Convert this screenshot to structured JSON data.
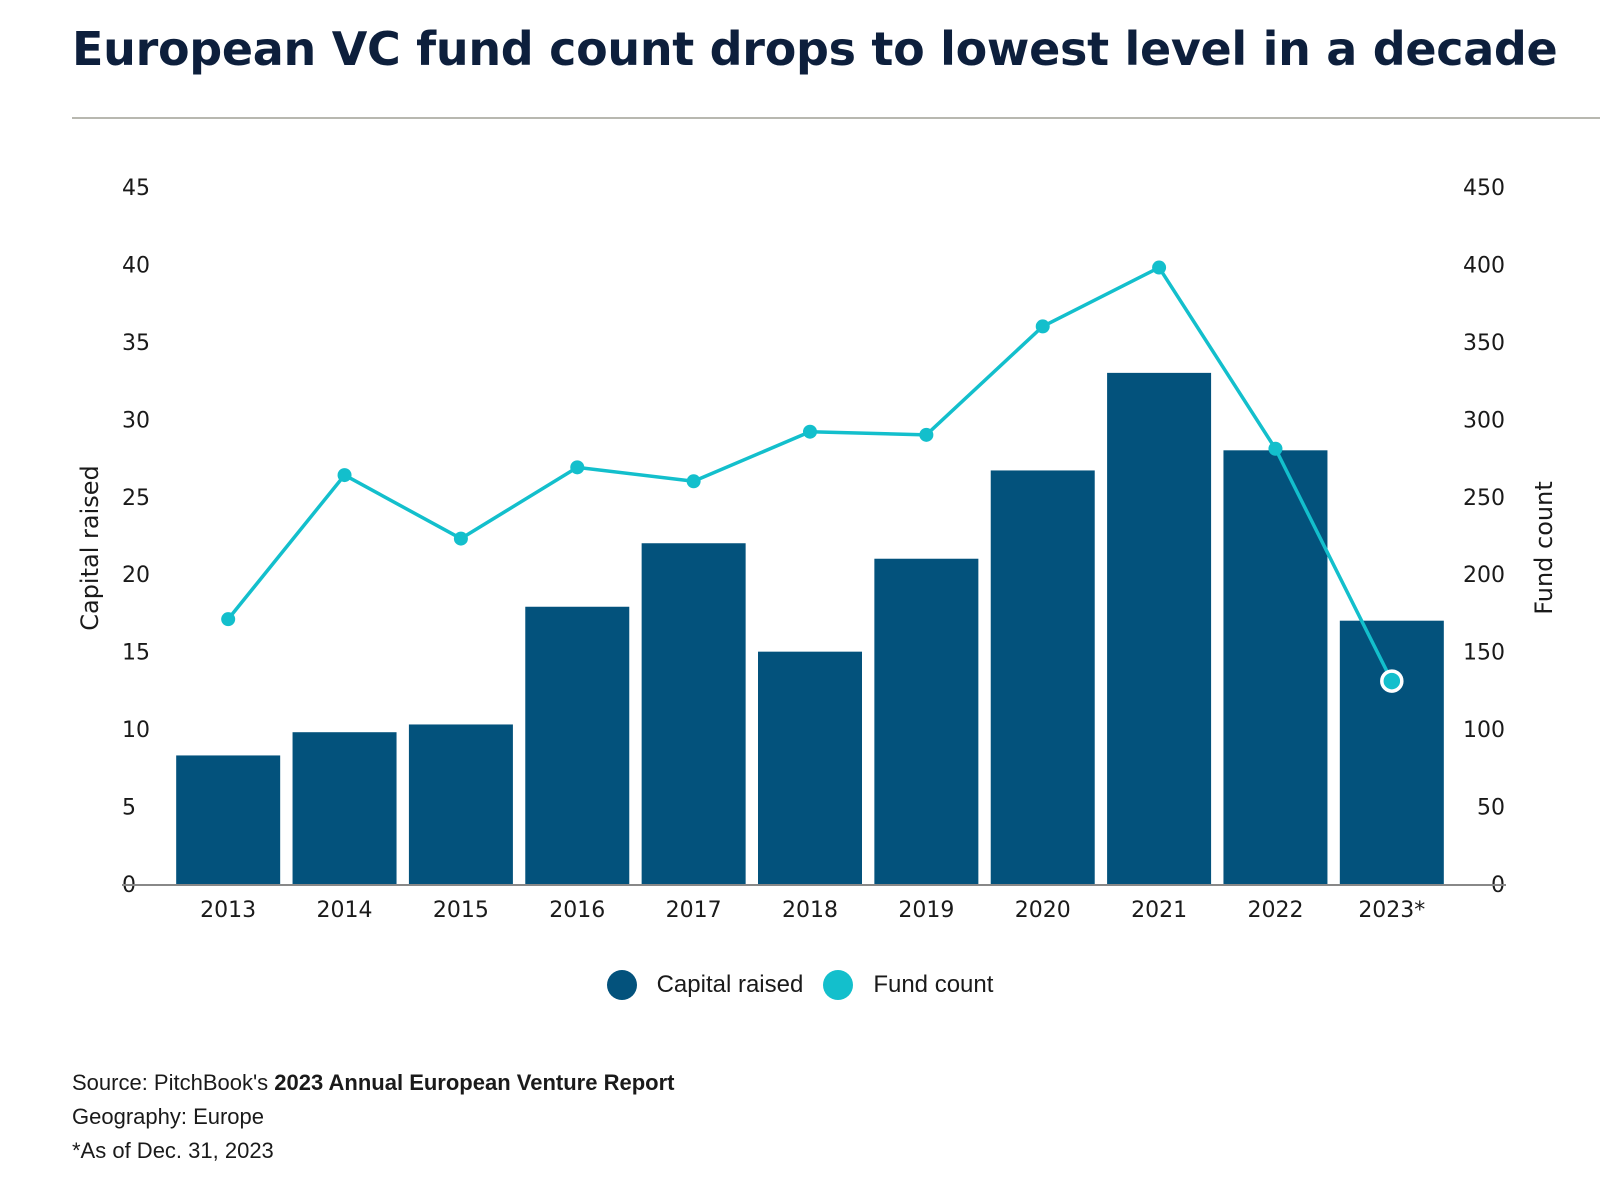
{
  "header": {
    "title": "European VC fund count drops to lowest level in a decade"
  },
  "colors": {
    "bar": "#03527c",
    "line": "#13bfcc",
    "axis": "#888888"
  },
  "chart_data": {
    "type": "bar+line",
    "title": "European VC fund count drops to lowest level in a decade",
    "categories": [
      "2013",
      "2014",
      "2015",
      "2016",
      "2017",
      "2018",
      "2019",
      "2020",
      "2021",
      "2022",
      "2023*"
    ],
    "series": [
      {
        "name": "Capital raised",
        "type": "bar",
        "axis": "left",
        "values": [
          8.3,
          9.8,
          10.3,
          17.9,
          22.0,
          15.0,
          21.0,
          26.7,
          33.0,
          28.0,
          17.0
        ]
      },
      {
        "name": "Fund count",
        "type": "line",
        "axis": "right",
        "values": [
          171,
          264,
          223,
          269,
          260,
          292,
          290,
          360,
          398,
          281,
          131
        ],
        "highlight_last": true
      }
    ],
    "ylabel": "Capital raised",
    "y2label": "Fund count",
    "ylim": [
      0,
      45
    ],
    "y2lim": [
      0,
      450
    ],
    "yticks": [
      0,
      5,
      10,
      15,
      20,
      25,
      30,
      35,
      40,
      45
    ],
    "y2ticks": [
      0,
      50,
      100,
      150,
      200,
      250,
      300,
      350,
      400,
      450
    ],
    "legend": [
      "Capital raised",
      "Fund count"
    ],
    "legend_position": "bottom-center",
    "grid": false
  },
  "footer": {
    "source_prefix": "Source: PitchBook's ",
    "source_bold": "2023 Annual European Venture Report",
    "geography": "Geography: Europe",
    "note": "*As of Dec. 31, 2023"
  }
}
